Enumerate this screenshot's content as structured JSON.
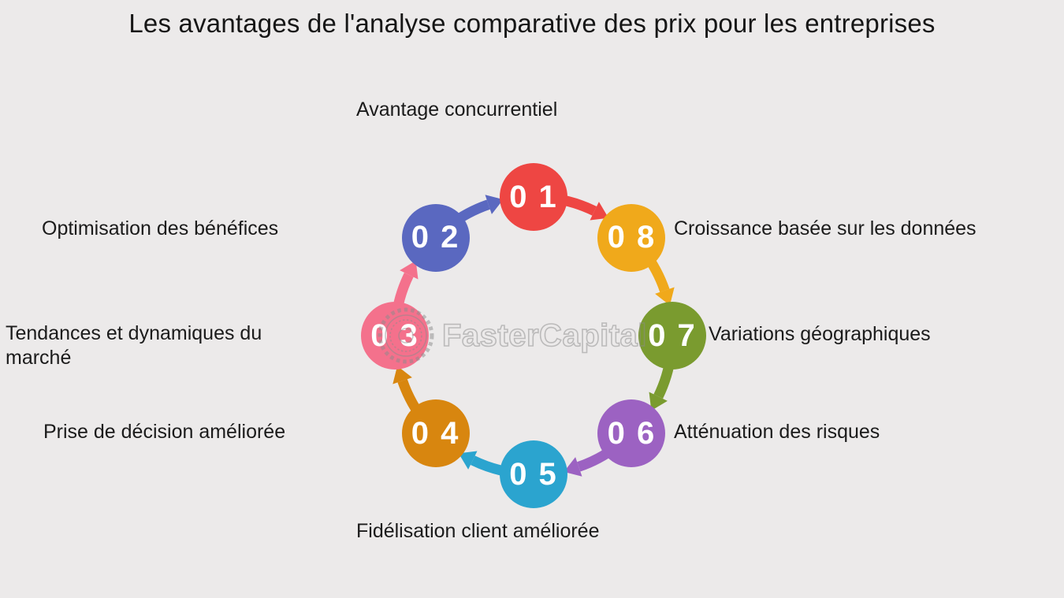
{
  "title": "Les avantages de l'analyse comparative des prix pour les entreprises",
  "watermark": {
    "text": "FasterCapital",
    "logo": "gear-logo"
  },
  "colors": {
    "background": "#ECEAEA",
    "title_text": "#161616",
    "label_text": "#1B1B1B",
    "number_text": "#FFFFFF",
    "watermark": "#8C8C8C"
  },
  "diagram": {
    "type": "circular-process",
    "direction": "clockwise",
    "items": [
      {
        "id": "01",
        "number": "0 1",
        "label": "Avantage concurrentiel",
        "color": "#EE4643"
      },
      {
        "id": "02",
        "number": "0 2",
        "label": "Optimisation des bénéfices",
        "color": "#5A68C0"
      },
      {
        "id": "03",
        "number": "0 3",
        "label": "Tendances et dynamiques du marché",
        "color": "#F4718C"
      },
      {
        "id": "04",
        "number": "0 4",
        "label": "Prise de décision améliorée",
        "color": "#D8860F"
      },
      {
        "id": "05",
        "number": "0 5",
        "label": "Fidélisation client améliorée",
        "color": "#2BA4CF"
      },
      {
        "id": "06",
        "number": "0 6",
        "label": "Atténuation des risques",
        "color": "#9C62C2"
      },
      {
        "id": "07",
        "number": "0 7",
        "label": "Variations géographiques",
        "color": "#7A9B2F"
      },
      {
        "id": "08",
        "number": "0 8",
        "label": "Croissance basée sur les données",
        "color": "#F0A91B"
      }
    ],
    "flow": [
      "01",
      "08",
      "07",
      "06",
      "05",
      "04",
      "03",
      "02",
      "01"
    ]
  }
}
